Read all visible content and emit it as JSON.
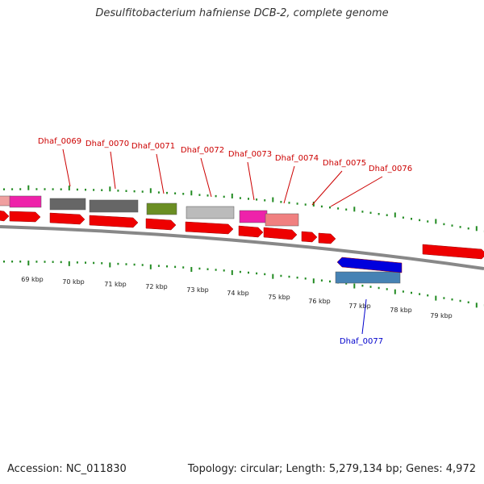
{
  "title": "Desulfitobacterium hafniense DCB-2, complete genome",
  "footer": {
    "accession": "Accession: NC_011830",
    "summary": "Topology: circular; Length: 5,279,134 bp; Genes: 4,972"
  },
  "colors": {
    "cds_forward": "#ee0000",
    "cds_reverse": "#0000dd",
    "label_forward": "#cc0000",
    "label_reverse": "#0000cc",
    "backbone": "#888888",
    "ticks": "#228b22"
  },
  "scale": {
    "unit": "kbp",
    "labels": [
      "69 kbp",
      "70 kbp",
      "71 kbp",
      "72 kbp",
      "73 kbp",
      "74 kbp",
      "75 kbp",
      "76 kbp",
      "77 kbp",
      "78 kbp",
      "79 kbp"
    ]
  },
  "genes_forward": [
    {
      "label": "Dhaf_0069",
      "category_color": "#666666"
    },
    {
      "label": "Dhaf_0070",
      "category_color": "#666666"
    },
    {
      "label": "Dhaf_0071",
      "category_color": "#6b8e23"
    },
    {
      "label": "Dhaf_0072",
      "category_color": "#bbbbbb"
    },
    {
      "label": "Dhaf_0073",
      "category_color": "#ee22aa"
    },
    {
      "label": "Dhaf_0074",
      "category_color": "#f08080"
    },
    {
      "label": "Dhaf_0075",
      "category_color": ""
    },
    {
      "label": "Dhaf_0076",
      "category_color": ""
    }
  ],
  "genes_reverse": [
    {
      "label": "Dhaf_0077",
      "category_color": "#4682b4"
    }
  ]
}
